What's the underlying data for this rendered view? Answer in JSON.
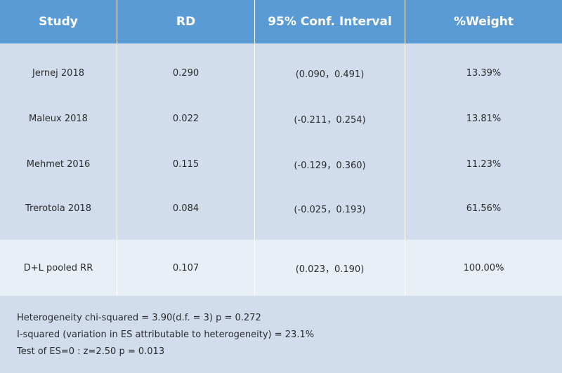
{
  "headers": [
    "Study",
    "RD",
    "95% Conf. Interval",
    "%Weight"
  ],
  "rows": [
    {
      "study": "Jernej 2018",
      "rd": "0.290",
      "ci": "(0.090，0.491)",
      "weight": "13.39%"
    },
    {
      "study": "Maleux 2018",
      "rd": "0.022",
      "ci": "(-0.211，0.254)",
      "weight": "13.81%"
    },
    {
      "study": "Mehmet 2016",
      "rd": "0.115",
      "ci": "(-0.129，0.360)",
      "weight": "11.23%"
    },
    {
      "study": "Trerotola 2018",
      "rd": "0.084",
      "ci": "(-0.025，0.193)",
      "weight": "61.56%"
    }
  ],
  "pooled": {
    "study": "D+L pooled RR",
    "rd": "0.107",
    "ci": "(0.023，0.190)",
    "weight": "100.00%"
  },
  "footer": [
    "Heterogeneity chi-squared = 3.90(d.f. = 3) p = 0.272",
    "I-squared (variation in ES attributable to heterogeneity) = 23.1%",
    "Test of ES=0 : z=2.50 p = 0.013"
  ],
  "colors": {
    "header_bg": "#5b9bd5",
    "body_bg": "#d1dcec",
    "pooled_bg": "#e9eff7"
  }
}
